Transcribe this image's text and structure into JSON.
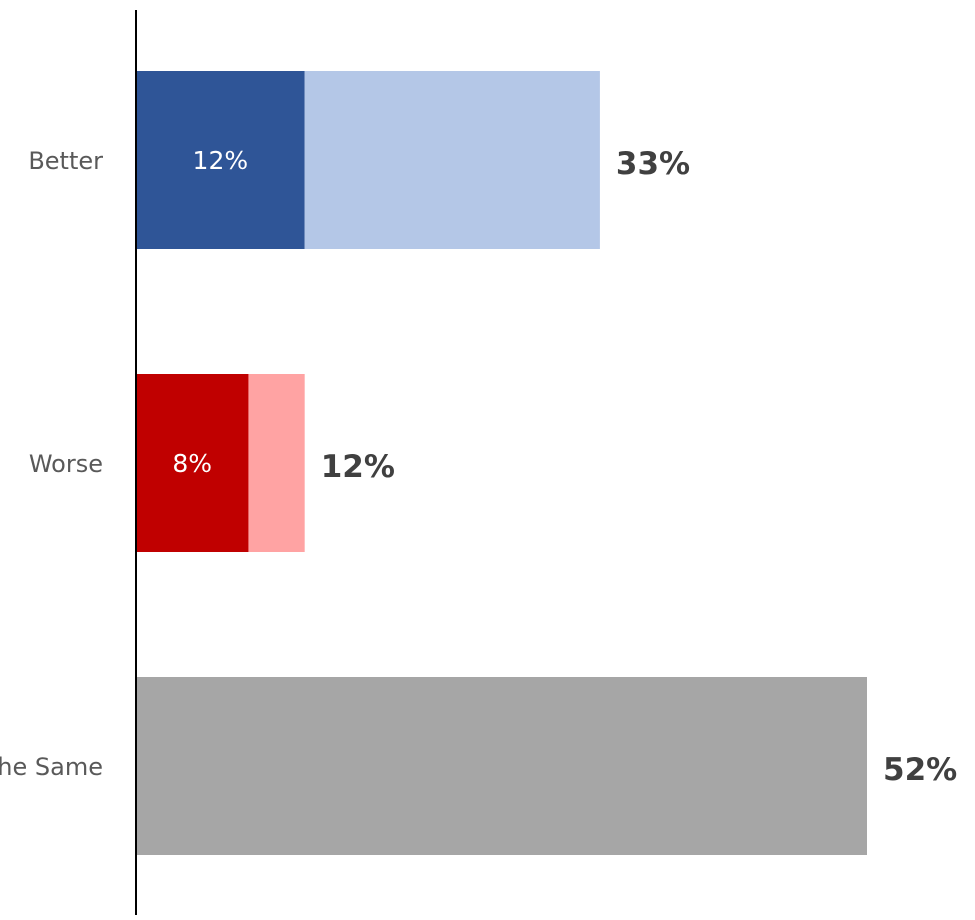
{
  "chart_data": {
    "type": "bar",
    "orientation": "horizontal",
    "stacked": true,
    "categories": [
      "Better",
      "Worse",
      "Stayed the Same"
    ],
    "series": [
      {
        "values": [
          12,
          8,
          null
        ],
        "colors": [
          "#2f5597",
          "#c00000",
          null
        ]
      },
      {
        "values": [
          21,
          4,
          52
        ],
        "colors": [
          "#b4c7e7",
          "#ffa3a3",
          "#a6a6a6"
        ]
      }
    ],
    "inner_labels": [
      "12%",
      "8%",
      ""
    ],
    "totals": [
      33,
      12,
      52
    ],
    "total_labels": [
      "33%",
      "12%",
      "52%"
    ],
    "xlim": [
      0,
      55
    ],
    "grid": false,
    "legend": "none",
    "axis_color": "#000000"
  }
}
